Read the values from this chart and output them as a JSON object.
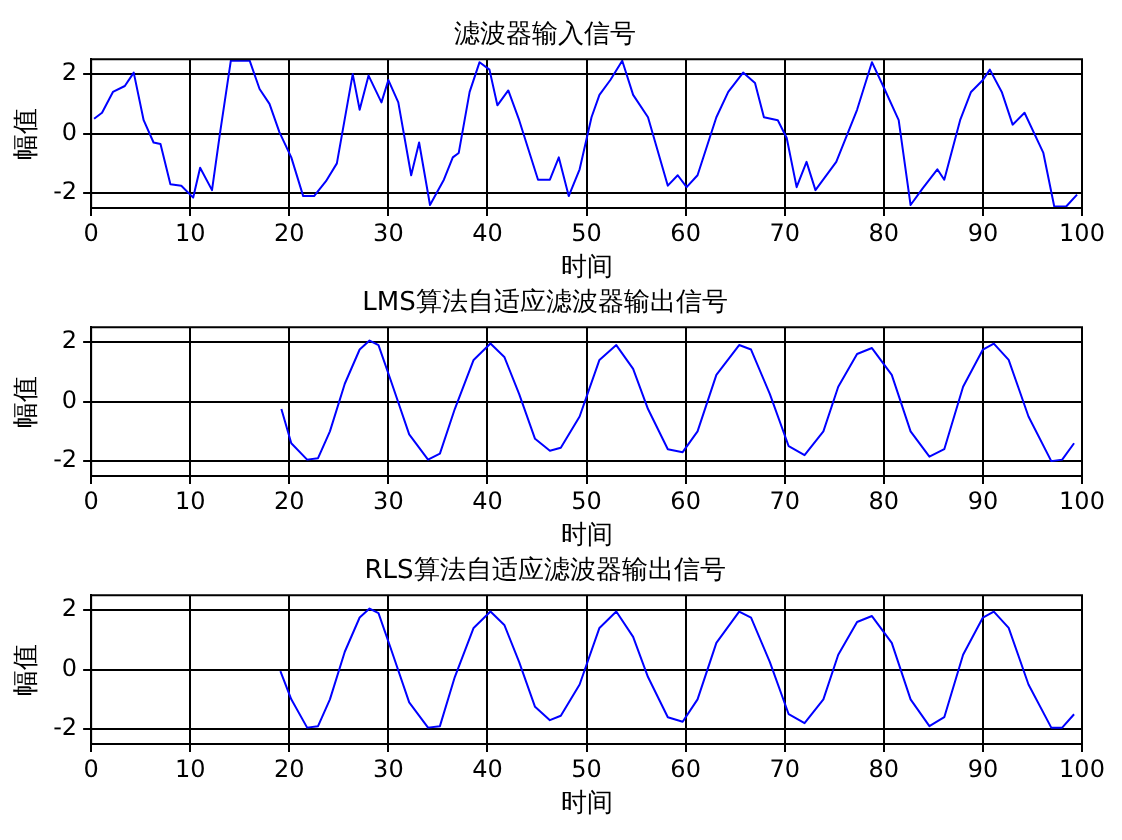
{
  "chart_data": [
    {
      "type": "line",
      "title": "滤波器输入信号",
      "xlabel": "时间",
      "ylabel": "幅值",
      "xlim": [
        0,
        100
      ],
      "ylim": [
        -2.5,
        2.5
      ],
      "xticks": [
        0,
        10,
        20,
        30,
        40,
        50,
        60,
        70,
        80,
        90,
        100
      ],
      "yticks": [
        -2,
        0,
        2
      ],
      "grid": true,
      "line_style": "solid",
      "marker": "none",
      "series": [
        {
          "color": "#0000ff",
          "x": [
            0.3,
            1.1,
            2.2,
            3.4,
            4.3,
            5.3,
            6.3,
            7,
            8,
            9.1,
            10.3,
            11,
            12.2,
            13,
            14.1,
            16,
            17,
            18,
            19,
            20.2,
            21.4,
            22.5,
            23.7,
            24.8,
            26.4,
            27.1,
            28,
            29.3,
            30,
            31,
            32.3,
            33.1,
            34.2,
            35.6,
            36.5,
            37.1,
            38.2,
            39.2,
            40.2,
            41,
            42.1,
            43.2,
            45.1,
            46.3,
            47.2,
            48.2,
            49.3,
            50.5,
            51.3,
            52.4,
            53.6,
            54.7,
            56.2,
            58.2,
            59.2,
            60.1,
            61.2,
            63.1,
            64.3,
            65.8,
            67,
            67.9,
            69.3,
            70.2,
            71.2,
            72.2,
            73.1,
            75.2,
            77.3,
            78.8,
            80,
            81.5,
            82.7,
            83.9,
            85.4,
            86.1,
            87.7,
            88.8,
            90,
            90.7,
            91.9,
            93,
            94.2,
            96.1,
            97.2,
            98.4,
            99.5
          ],
          "values": [
            0.5,
            0.7,
            1.4,
            1.6,
            2.05,
            0.45,
            -0.3,
            -0.35,
            -1.7,
            -1.75,
            -2.15,
            -1.15,
            -1.9,
            0,
            2.45,
            2.45,
            1.5,
            1.0,
            0.05,
            -0.8,
            -2.1,
            -2.1,
            -1.6,
            -1,
            2.0,
            0.8,
            1.95,
            1.05,
            1.8,
            1.05,
            -1.4,
            -0.3,
            -2.4,
            -1.55,
            -0.8,
            -0.65,
            1.4,
            2.4,
            2.15,
            0.95,
            1.45,
            0.45,
            -1.55,
            -1.55,
            -0.8,
            -2.1,
            -1.2,
            0.55,
            1.3,
            1.8,
            2.45,
            1.3,
            0.55,
            -1.75,
            -1.4,
            -1.8,
            -1.4,
            0.55,
            1.4,
            2.05,
            1.7,
            0.55,
            0.45,
            -0.15,
            -1.8,
            -0.95,
            -1.9,
            -0.95,
            0.8,
            2.4,
            1.55,
            0.45,
            -2.4,
            -1.85,
            -1.2,
            -1.55,
            0.45,
            1.4,
            1.8,
            2.15,
            1.4,
            0.3,
            0.7,
            -0.65,
            -2.45,
            -2.45,
            -2.05
          ]
        }
      ]
    },
    {
      "type": "line",
      "title": "LMS算法自适应滤波器输出信号",
      "xlabel": "时间",
      "ylabel": "幅值",
      "xlim": [
        0,
        100
      ],
      "ylim": [
        -2.5,
        2.5
      ],
      "xticks": [
        0,
        10,
        20,
        30,
        40,
        50,
        60,
        70,
        80,
        90,
        100
      ],
      "yticks": [
        -2,
        0,
        2
      ],
      "grid": true,
      "line_style": "solid",
      "marker": "none",
      "series": [
        {
          "color": "#0000ff",
          "x": [
            19.2,
            20.2,
            21.8,
            22.9,
            24.1,
            25.6,
            27.1,
            28.1,
            29,
            30.2,
            32.1,
            34,
            35.2,
            36.7,
            38.6,
            40.3,
            41.7,
            43.2,
            44.8,
            46.3,
            47.4,
            49.3,
            51.3,
            53,
            54.7,
            56.2,
            58.2,
            59.7,
            61.2,
            63.1,
            65.4,
            66.6,
            68.5,
            70.4,
            72,
            73.9,
            75.4,
            77.3,
            78.8,
            80.8,
            82.7,
            84.6,
            86.1,
            88,
            90,
            91.1,
            92.6,
            94.6,
            96.9,
            98,
            99.2
          ],
          "values": [
            -0.25,
            -1.4,
            -1.95,
            -1.9,
            -1.0,
            0.6,
            1.75,
            2.05,
            1.9,
            0.75,
            -1.1,
            -1.95,
            -1.75,
            -0.25,
            1.4,
            1.95,
            1.5,
            0.25,
            -1.25,
            -1.65,
            -1.55,
            -0.5,
            1.4,
            1.9,
            1.1,
            -0.25,
            -1.6,
            -1.7,
            -1.0,
            0.9,
            1.9,
            1.75,
            0.25,
            -1.5,
            -1.8,
            -1.0,
            0.5,
            1.6,
            1.8,
            0.9,
            -1.0,
            -1.85,
            -1.6,
            0.5,
            1.75,
            1.95,
            1.4,
            -0.5,
            -2.0,
            -1.95,
            -1.4
          ]
        }
      ]
    },
    {
      "type": "line",
      "title": "RLS算法自适应滤波器输出信号",
      "xlabel": "时间",
      "ylabel": "幅值",
      "xlim": [
        0,
        100
      ],
      "ylim": [
        -2.5,
        2.5
      ],
      "xticks": [
        0,
        10,
        20,
        30,
        40,
        50,
        60,
        70,
        80,
        90,
        100
      ],
      "yticks": [
        -2,
        0,
        2
      ],
      "grid": true,
      "line_style": "solid",
      "marker": "none",
      "series": [
        {
          "color": "#0000ff",
          "x": [
            19.1,
            20.2,
            21.8,
            22.9,
            24.1,
            25.6,
            27.1,
            28.1,
            29,
            30.2,
            32.1,
            34,
            35.2,
            36.7,
            38.6,
            40.3,
            41.7,
            43.2,
            44.8,
            46.3,
            47.4,
            49.3,
            51.3,
            53,
            54.7,
            56.2,
            58.2,
            59.7,
            61.2,
            63.1,
            65.4,
            66.6,
            68.5,
            70.4,
            72,
            73.9,
            75.4,
            77.3,
            78.8,
            80.8,
            82.7,
            84.6,
            86.1,
            88,
            90,
            91.1,
            92.6,
            94.6,
            96.9,
            98,
            99.2
          ],
          "values": [
            -0.05,
            -1.0,
            -1.95,
            -1.9,
            -1.0,
            0.6,
            1.75,
            2.05,
            1.9,
            0.75,
            -1.1,
            -1.95,
            -1.9,
            -0.25,
            1.4,
            1.95,
            1.5,
            0.25,
            -1.25,
            -1.7,
            -1.55,
            -0.5,
            1.4,
            1.95,
            1.1,
            -0.25,
            -1.6,
            -1.75,
            -1.0,
            0.9,
            1.95,
            1.75,
            0.25,
            -1.5,
            -1.8,
            -1.0,
            0.5,
            1.6,
            1.8,
            0.9,
            -1.0,
            -1.9,
            -1.6,
            0.5,
            1.75,
            1.95,
            1.4,
            -0.5,
            -1.95,
            -1.95,
            -1.5
          ]
        }
      ]
    }
  ]
}
